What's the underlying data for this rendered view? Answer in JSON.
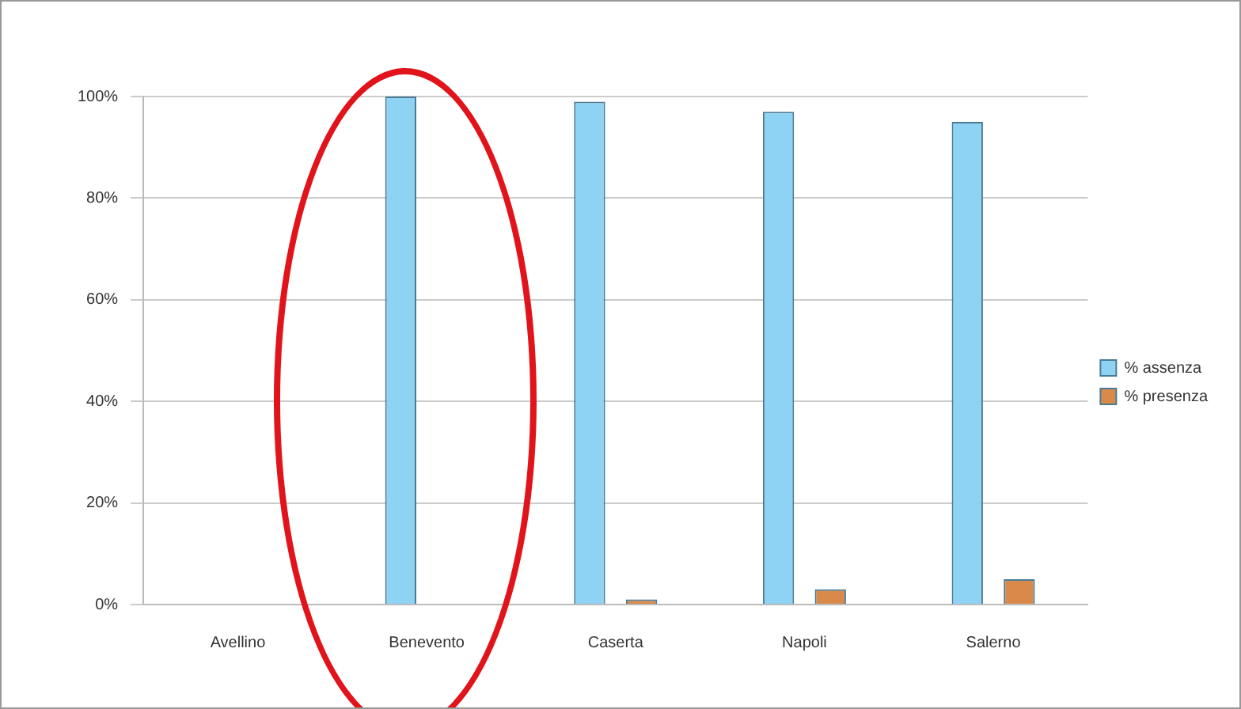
{
  "chart_data": {
    "type": "bar",
    "categories": [
      "Avellino",
      "Benevento",
      "Caserta",
      "Napoli",
      "Salerno"
    ],
    "series": [
      {
        "name": "% assenza",
        "color": "#8fd3f4",
        "values": [
          0,
          100,
          99,
          97,
          95
        ]
      },
      {
        "name": "% presenza",
        "color": "#d9894a",
        "values": [
          0,
          0,
          1,
          3,
          5
        ]
      }
    ],
    "ylim": [
      0,
      100
    ],
    "yticks": [
      {
        "value": 0,
        "label": "0%"
      },
      {
        "value": 20,
        "label": "20%"
      },
      {
        "value": 40,
        "label": "40%"
      },
      {
        "value": 60,
        "label": "60%"
      },
      {
        "value": 80,
        "label": "80%"
      },
      {
        "value": 100,
        "label": "100%"
      }
    ],
    "grid": "y",
    "legend": "right"
  }
}
